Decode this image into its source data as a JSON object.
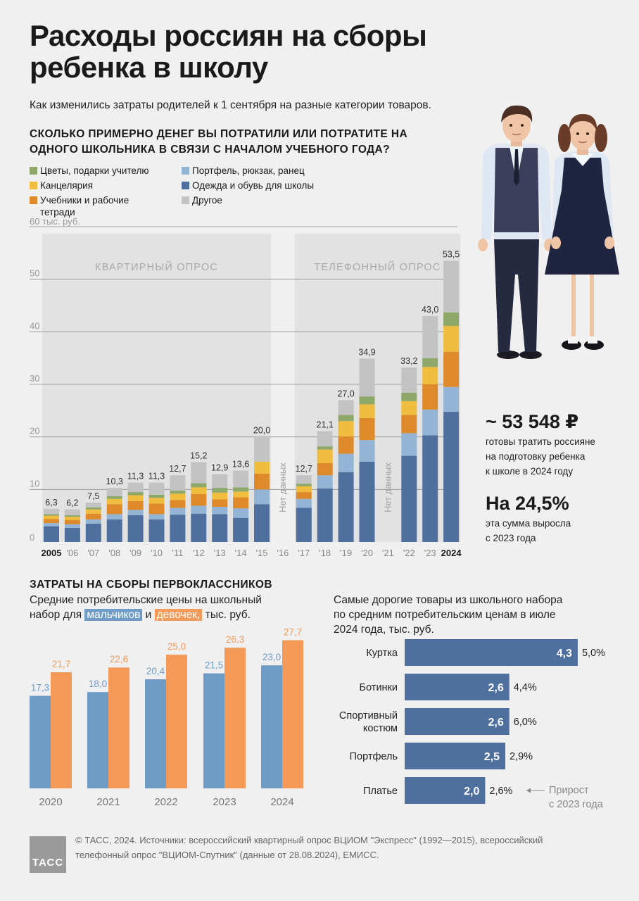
{
  "title": "Расходы россиян на сборы ребенка в школу",
  "subtitle": "Как изменились затраты родителей к 1 сентября на разные категории товаров.",
  "colors": {
    "flowers": "#8ea86a",
    "stationery": "#f0bd3e",
    "textbooks": "#de8a2b",
    "backpack": "#93b4d4",
    "clothing": "#4f6f9e",
    "other": "#c3c3c3",
    "boys": "#6f9cc6",
    "girls": "#f39a59",
    "bar_top": "#4f6f9e"
  },
  "chart_data": [
    {
      "type": "bar",
      "title": "СКОЛЬКО ПРИМЕРНО ДЕНЕГ ВЫ ПОТРАТИЛИ ИЛИ ПОТРАТИТЕ НА ОДНОГО ШКОЛЬНИКА В СВЯЗИ С НАЧАЛОМ УЧЕБНОГО ГОДА?",
      "stacked": true,
      "ylabel": "60 тыс. руб.",
      "ylim": [
        0,
        60
      ],
      "yticks": [
        0,
        10,
        20,
        30,
        40,
        50
      ],
      "categories": [
        "2005",
        "'06",
        "'07",
        "'08",
        "'09",
        "'10",
        "'11",
        "'12",
        "'13",
        "'14",
        "'15",
        "'16",
        "'17",
        "'18",
        "'19",
        "'20",
        "'21",
        "'22",
        "'23",
        "2024"
      ],
      "series": [
        {
          "name": "Одежда и обувь для школы",
          "key": "clothing",
          "values": [
            3.0,
            2.7,
            3.5,
            4.3,
            5.1,
            4.3,
            5.2,
            5.4,
            5.3,
            4.6,
            7.2,
            null,
            6.5,
            10.2,
            13.3,
            15.3,
            null,
            16.4,
            20.3,
            24.8
          ]
        },
        {
          "name": "Портфель, рюкзак, ранец",
          "key": "backpack",
          "values": [
            0.6,
            0.7,
            0.8,
            1.0,
            1.0,
            1.0,
            1.3,
            1.5,
            1.4,
            1.8,
            2.8,
            null,
            1.7,
            2.5,
            3.5,
            4.1,
            null,
            4.3,
            4.9,
            4.7
          ]
        },
        {
          "name": "Учебники и рабочие тетради",
          "key": "textbooks",
          "values": [
            0.8,
            0.8,
            1.1,
            1.9,
            1.7,
            2.0,
            1.5,
            2.2,
            1.4,
            2.1,
            3.0,
            null,
            1.3,
            2.3,
            3.3,
            4.2,
            null,
            3.5,
            4.8,
            6.7
          ]
        },
        {
          "name": "Канцелярия",
          "key": "stationery",
          "values": [
            0.6,
            0.6,
            0.8,
            1.0,
            1.1,
            1.1,
            1.2,
            1.3,
            1.3,
            1.1,
            2.3,
            null,
            1.1,
            2.6,
            2.9,
            2.6,
            null,
            2.6,
            3.3,
            4.9
          ]
        },
        {
          "name": "Цветы, подарки учителю",
          "key": "flowers",
          "values": [
            0.3,
            0.3,
            0.4,
            0.5,
            0.6,
            0.6,
            0.6,
            0.8,
            0.9,
            0.8,
            0.0,
            null,
            0.5,
            0.6,
            1.2,
            1.5,
            null,
            1.6,
            1.7,
            2.6
          ]
        },
        {
          "name": "Другое",
          "key": "other",
          "values": [
            1.0,
            1.1,
            0.9,
            1.6,
            1.8,
            2.3,
            2.9,
            4.0,
            2.6,
            3.2,
            4.7,
            null,
            1.6,
            2.9,
            2.8,
            7.2,
            null,
            4.8,
            8.0,
            9.8
          ]
        }
      ],
      "totals": [
        6.3,
        6.2,
        7.5,
        10.3,
        11.3,
        11.3,
        12.7,
        15.2,
        12.9,
        13.6,
        20.0,
        null,
        12.7,
        21.1,
        27.0,
        34.9,
        null,
        33.2,
        43.0,
        53.5
      ],
      "total_labels": [
        "6,3",
        "6,2",
        "7,5",
        "10,3",
        "11,3",
        "11,3",
        "12,7",
        "15,2",
        "12,9",
        "13,6",
        "20,0",
        "",
        "12,7",
        "21,1",
        "27,0",
        "34,9",
        "",
        "33,2",
        "43,0",
        "53,5"
      ],
      "no_data_label": "Нет данных",
      "periods": [
        {
          "label": "КВАРТИРНЫЙ ОПРОС",
          "from": 0,
          "to": 10
        },
        {
          "label": "ТЕЛЕФОННЫЙ ОПРОС",
          "from": 12,
          "to": 19
        }
      ],
      "bold_categories": [
        0,
        19
      ]
    },
    {
      "type": "bar",
      "title": "ЗАТРАТЫ НА СБОРЫ ПЕРВОКЛАССНИКОВ",
      "categories": [
        "2020",
        "2021",
        "2022",
        "2023",
        "2024"
      ],
      "ylim": [
        0,
        30
      ],
      "series": [
        {
          "name": "мальчиков",
          "key": "boys",
          "values": [
            17.3,
            18.0,
            20.4,
            21.5,
            23.0
          ],
          "labels": [
            "17,3",
            "18,0",
            "20,4",
            "21,5",
            "23,0"
          ]
        },
        {
          "name": "девочек,",
          "key": "girls",
          "values": [
            21.7,
            22.6,
            25.0,
            26.3,
            27.7
          ],
          "labels": [
            "21,7",
            "22,6",
            "25,0",
            "26,3",
            "27,7"
          ]
        }
      ]
    },
    {
      "type": "bar",
      "orientation": "horizontal",
      "categories": [
        "Куртка",
        "Ботинки",
        "Спортивный костюм",
        "Портфель",
        "Платье"
      ],
      "values": [
        4.3,
        2.6,
        2.6,
        2.5,
        2.0
      ],
      "value_labels": [
        "4,3",
        "2,6",
        "2,6",
        "2,5",
        "2,0"
      ],
      "growth_labels": [
        "5,0%",
        "4,4%",
        "6,0%",
        "2,9%",
        "2,6%"
      ],
      "growth_note": "Прирост с 2023 года",
      "xlim": [
        0,
        4.5
      ]
    }
  ],
  "legend": {
    "col1": [
      {
        "label": "Цветы, подарки учителю",
        "key": "flowers"
      },
      {
        "label": "Канцелярия",
        "key": "stationery"
      },
      {
        "label": "Учебники и рабочие тетради",
        "key": "textbooks"
      }
    ],
    "col2": [
      {
        "label": "Портфель, рюкзак, ранец",
        "key": "backpack"
      },
      {
        "label": "Одежда и обувь для школы",
        "key": "clothing"
      },
      {
        "label": "Другое",
        "key": "other"
      }
    ]
  },
  "stats": {
    "amount": "~ 53 548 ₽",
    "amount_desc_1": "готовы тратить россияне",
    "amount_desc_2": "на подготовку ребенка",
    "amount_desc_3": "к школе в 2024 году",
    "growth": "На 24,5%",
    "growth_desc_1": "эта сумма выросла",
    "growth_desc_2": "с 2023 года"
  },
  "first_class": {
    "heading": "ЗАТРАТЫ НА СБОРЫ ПЕРВОКЛАССНИКОВ",
    "sub_1": "Средние потребительские цены на школьный",
    "sub_2_pre": "набор для",
    "boys": "мальчиков",
    "and": "и",
    "girls": "девочек,",
    "sub_2_post": "тыс. руб."
  },
  "top_products": {
    "sub_1": "Самые дорогие товары из школьного набора",
    "sub_2": "по средним потребительским ценам в июле",
    "sub_3": "2024 года, тыс. руб."
  },
  "footer": {
    "text_1": "© ТАСС, 2024. Источники: всероссийский квартирный опрос ВЦИОМ \"Экспресс\" (1992—2015), всероссийский",
    "text_2": "телефонный опрос \"ВЦИОМ-Спутник\" (данные от 28.08.2024), ЕМИСС.",
    "logo": "ТАСС"
  }
}
